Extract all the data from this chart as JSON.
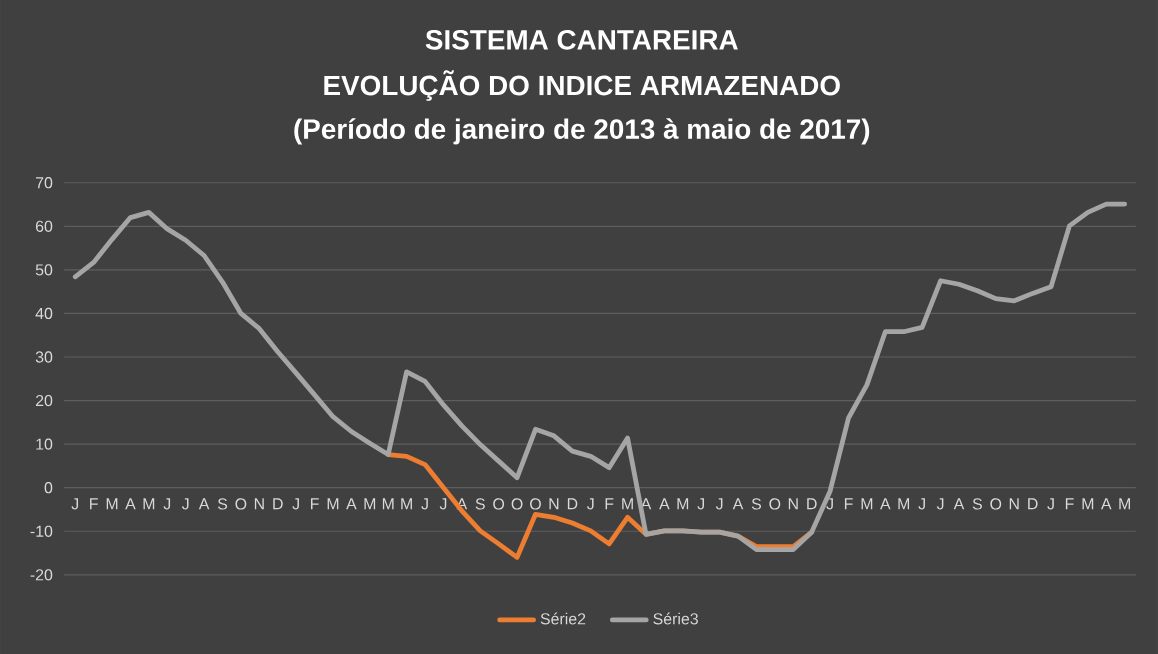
{
  "chart_data": {
    "type": "line",
    "title": "SISTEMA CANTAREIRA",
    "subtitle": "EVOLUÇÃO DO INDICE ARMAZENADO",
    "annotations": [
      "(Período de janeiro de 2013 à maio de 2017)"
    ],
    "categories": [
      "J",
      "F",
      "M",
      "A",
      "M",
      "J",
      "J",
      "A",
      "S",
      "O",
      "N",
      "D",
      "J",
      "F",
      "M",
      "A",
      "M",
      "M",
      "M",
      "J",
      "J",
      "A",
      "S",
      "O",
      "O",
      "O",
      "N",
      "D",
      "J",
      "F",
      "M",
      "A",
      "A",
      "M",
      "J",
      "J",
      "A",
      "S",
      "O",
      "N",
      "D",
      "J",
      "F",
      "M",
      "A",
      "M",
      "J",
      "J",
      "A",
      "S",
      "O",
      "N",
      "D",
      "J",
      "F",
      "M",
      "A",
      "M"
    ],
    "series": [
      {
        "name": "Série2",
        "color": "#ed7d31",
        "values": [
          null,
          null,
          null,
          null,
          null,
          null,
          null,
          null,
          null,
          null,
          null,
          null,
          null,
          null,
          null,
          null,
          null,
          7.6,
          7.2,
          5.3,
          0,
          -5.3,
          -9.9,
          -12.9,
          -16,
          -6.1,
          -6.8,
          -8.1,
          -9.9,
          -12.9,
          -6.8,
          -10.7,
          -9.9,
          -9.9,
          -10.2,
          -10.2,
          -11.1,
          -13.5,
          -13.5,
          -13.5,
          -10.2,
          null,
          null,
          null,
          null,
          null,
          null,
          null,
          null,
          null,
          null,
          null,
          null,
          null,
          null,
          null,
          null,
          null
        ]
      },
      {
        "name": "Série3",
        "color": "#a5a5a5",
        "values": [
          48.4,
          51.7,
          57,
          62,
          63.2,
          59.4,
          56.8,
          53.3,
          47.2,
          40,
          36.5,
          31.2,
          26.3,
          21.3,
          16.3,
          12.9,
          10.2,
          7.6,
          26.6,
          24.4,
          19,
          14.2,
          9.9,
          6.1,
          2.3,
          13.4,
          11.9,
          8.4,
          7.2,
          4.6,
          11.4,
          -10.7,
          -9.9,
          -9.9,
          -10.2,
          -10.2,
          -11.1,
          -14.2,
          -14.2,
          -14.2,
          -10.2,
          -0.8,
          16,
          23.6,
          35.8,
          35.8,
          36.8,
          47.5,
          46.7,
          45.2,
          43.4,
          42.9,
          44.6,
          46.1,
          60.1,
          63.2,
          65.1,
          65.1
        ]
      }
    ],
    "ylim": [
      -20,
      70
    ],
    "yticks": [
      -20,
      -10,
      0,
      10,
      20,
      30,
      40,
      50,
      60,
      70
    ],
    "grid": "y",
    "legend": "bottom",
    "marker": "none",
    "line_style": "solid"
  }
}
